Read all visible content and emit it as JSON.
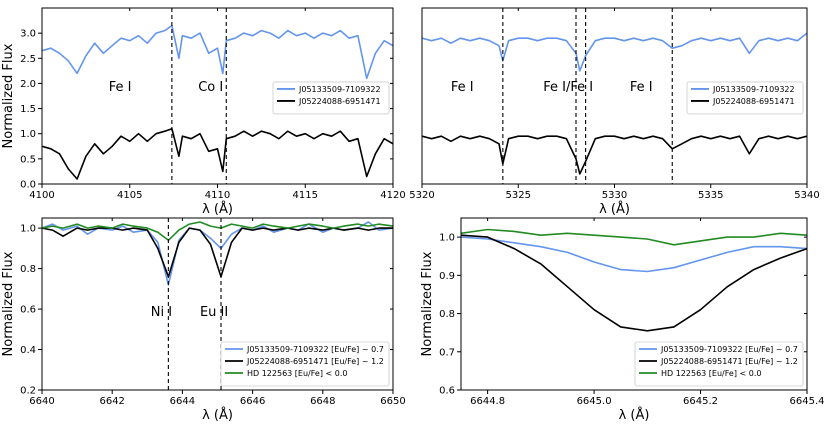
{
  "chart_data": [
    {
      "type": "line",
      "id": "p1",
      "xlabel": "λ (Å)",
      "ylabel": "Normalized Flux",
      "xlim": [
        4100,
        4120
      ],
      "ylim": [
        0.0,
        3.5
      ],
      "xticks": [
        4100,
        4105,
        4110,
        4115,
        4120
      ],
      "yticks": [
        0.0,
        0.5,
        1.0,
        1.5,
        2.0,
        2.5,
        3.0
      ],
      "ytick_labels": [
        "0.0",
        "0.5",
        "1.0",
        "1.5",
        "2.0",
        "2.5",
        "3.0"
      ],
      "vlines": [
        4107.4,
        4110.5
      ],
      "annotations": [
        {
          "text": "Fe I",
          "x": 4103.8,
          "y": 1.85
        },
        {
          "text": "Co I",
          "x": 4108.9,
          "y": 1.85
        }
      ],
      "legend": [
        "J05133509-7109322",
        "J05224088-6951471"
      ],
      "legend_loc": "center-right",
      "series": [
        {
          "name": "J05133509-7109322",
          "color": "#6495ed",
          "x": [
            4100,
            4100.5,
            4101,
            4101.5,
            4102,
            4102.5,
            4103,
            4103.5,
            4104,
            4104.5,
            4105,
            4105.5,
            4106,
            4106.5,
            4107,
            4107.4,
            4107.8,
            4108,
            4108.5,
            4109,
            4109.5,
            4110,
            4110.3,
            4110.5,
            4111,
            4111.5,
            4112,
            4112.5,
            4113,
            4113.5,
            4114,
            4114.5,
            4115,
            4115.5,
            4116,
            4116.5,
            4117,
            4117.5,
            4118,
            4118.5,
            4119,
            4119.5,
            4120
          ],
          "y": [
            2.65,
            2.7,
            2.6,
            2.45,
            2.2,
            2.55,
            2.8,
            2.6,
            2.75,
            2.9,
            2.85,
            2.95,
            2.8,
            3.0,
            3.05,
            3.15,
            2.5,
            2.95,
            2.9,
            3.0,
            2.6,
            2.7,
            2.2,
            2.85,
            2.9,
            3.0,
            2.95,
            3.05,
            3.0,
            2.9,
            3.05,
            2.95,
            3.0,
            2.9,
            3.0,
            2.95,
            3.05,
            2.9,
            2.95,
            2.1,
            2.6,
            2.85,
            2.75
          ]
        },
        {
          "name": "J05224088-6951471",
          "color": "#000000",
          "x": [
            4100,
            4100.5,
            4101,
            4101.5,
            4102,
            4102.5,
            4103,
            4103.5,
            4104,
            4104.5,
            4105,
            4105.5,
            4106,
            4106.5,
            4107,
            4107.4,
            4107.8,
            4108,
            4108.5,
            4109,
            4109.5,
            4110,
            4110.3,
            4110.5,
            4111,
            4111.5,
            4112,
            4112.5,
            4113,
            4113.5,
            4114,
            4114.5,
            4115,
            4115.5,
            4116,
            4116.5,
            4117,
            4117.5,
            4118,
            4118.5,
            4119,
            4119.5,
            4120
          ],
          "y": [
            0.75,
            0.7,
            0.6,
            0.3,
            0.1,
            0.55,
            0.8,
            0.6,
            0.75,
            0.95,
            0.85,
            1.0,
            0.85,
            1.0,
            1.05,
            1.1,
            0.55,
            0.95,
            0.9,
            1.0,
            0.65,
            0.7,
            0.25,
            0.9,
            0.95,
            1.05,
            0.95,
            1.05,
            1.0,
            0.9,
            1.05,
            0.95,
            1.0,
            0.9,
            1.0,
            0.95,
            1.05,
            0.85,
            0.9,
            0.15,
            0.6,
            0.9,
            0.8
          ]
        }
      ]
    },
    {
      "type": "line",
      "id": "p2",
      "xlabel": "λ (Å)",
      "ylabel": "",
      "xlim": [
        5320,
        5340
      ],
      "ylim": [
        0.0,
        3.5
      ],
      "xticks": [
        5320,
        5325,
        5330,
        5335,
        5340
      ],
      "yticks": [],
      "ytick_labels": [],
      "vlines": [
        5324.2,
        5328.0,
        5328.5,
        5333.0
      ],
      "annotations": [
        {
          "text": "Fe I",
          "x": 5321.5,
          "y": 1.85
        },
        {
          "text": "Fe I/Fe I",
          "x": 5326.3,
          "y": 1.85
        },
        {
          "text": "Fe I",
          "x": 5330.8,
          "y": 1.85
        }
      ],
      "legend": [
        "J05133509-7109322",
        "J05224088-6951471"
      ],
      "legend_loc": "center-right",
      "series": [
        {
          "name": "J05133509-7109322",
          "color": "#6495ed",
          "x": [
            5320,
            5320.5,
            5321,
            5321.5,
            5322,
            5322.5,
            5323,
            5323.5,
            5324,
            5324.2,
            5324.5,
            5325,
            5325.5,
            5326,
            5326.5,
            5327,
            5327.5,
            5328,
            5328.2,
            5328.5,
            5329,
            5329.5,
            5330,
            5330.5,
            5331,
            5331.5,
            5332,
            5332.5,
            5333,
            5333.5,
            5334,
            5334.5,
            5335,
            5335.5,
            5336,
            5336.5,
            5337,
            5337.5,
            5338,
            5338.5,
            5339,
            5339.5,
            5340
          ],
          "y": [
            2.9,
            2.85,
            2.9,
            2.8,
            2.9,
            2.85,
            2.9,
            2.85,
            2.75,
            2.45,
            2.85,
            2.9,
            2.9,
            2.85,
            2.9,
            2.9,
            2.85,
            2.6,
            2.25,
            2.55,
            2.85,
            2.9,
            2.9,
            2.85,
            2.9,
            2.85,
            2.9,
            2.85,
            2.7,
            2.75,
            2.85,
            2.9,
            2.85,
            2.9,
            2.85,
            2.9,
            2.6,
            2.85,
            2.9,
            2.85,
            2.9,
            2.85,
            3.0
          ]
        },
        {
          "name": "J05224088-6951471",
          "color": "#000000",
          "x": [
            5320,
            5320.5,
            5321,
            5321.5,
            5322,
            5322.5,
            5323,
            5323.5,
            5324,
            5324.2,
            5324.5,
            5325,
            5325.5,
            5326,
            5326.5,
            5327,
            5327.5,
            5328,
            5328.2,
            5328.5,
            5329,
            5329.5,
            5330,
            5330.5,
            5331,
            5331.5,
            5332,
            5332.5,
            5333,
            5333.5,
            5334,
            5334.5,
            5335,
            5335.5,
            5336,
            5336.5,
            5337,
            5337.5,
            5338,
            5338.5,
            5339,
            5339.5,
            5340
          ],
          "y": [
            0.95,
            0.9,
            0.95,
            0.85,
            0.95,
            0.9,
            0.95,
            0.9,
            0.8,
            0.4,
            0.9,
            0.95,
            0.95,
            0.9,
            0.95,
            0.95,
            0.9,
            0.5,
            0.2,
            0.45,
            0.9,
            0.95,
            0.95,
            0.9,
            0.95,
            0.9,
            0.95,
            0.9,
            0.7,
            0.8,
            0.9,
            0.95,
            0.9,
            0.95,
            0.9,
            0.95,
            0.6,
            0.9,
            0.95,
            0.9,
            0.95,
            0.9,
            0.95
          ]
        }
      ]
    },
    {
      "type": "line",
      "id": "p3",
      "xlabel": "λ (Å)",
      "ylabel": "Normalized Flux",
      "xlim": [
        6640,
        6650
      ],
      "ylim": [
        0.2,
        1.05
      ],
      "xticks": [
        6640,
        6642,
        6644,
        6646,
        6648,
        6650
      ],
      "yticks": [
        0.2,
        0.4,
        0.6,
        0.8,
        1.0
      ],
      "ytick_labels": [
        "0.2",
        "0.4",
        "0.6",
        "0.8",
        "1.0"
      ],
      "vlines": [
        6643.6,
        6645.1
      ],
      "annotations": [
        {
          "text": "Ni I",
          "x": 6643.1,
          "y": 0.565
        },
        {
          "text": "Eu II",
          "x": 6644.5,
          "y": 0.565
        }
      ],
      "legend": [
        "J05133509-7109322 [Eu/Fe] ~ 0.7",
        "J05224088-6951471 [Eu/Fe] ~ 1.2",
        "HD 122563 [Eu/Fe] < 0.0"
      ],
      "legend_loc": "lower-right",
      "series": [
        {
          "name": "J05133509-7109322 [Eu/Fe] ~ 0.7",
          "color": "#6495ed",
          "x": [
            6640,
            6640.3,
            6640.6,
            6641,
            6641.3,
            6641.6,
            6642,
            6642.3,
            6642.6,
            6643,
            6643.3,
            6643.6,
            6643.9,
            6644.2,
            6644.5,
            6644.8,
            6645.1,
            6645.4,
            6645.7,
            6646,
            6646.3,
            6646.6,
            6647,
            6647.3,
            6647.6,
            6648,
            6648.3,
            6648.6,
            6649,
            6649.3,
            6649.6,
            6650
          ],
          "y": [
            1.0,
            1.02,
            0.99,
            1.01,
            0.97,
            1.0,
            0.99,
            1.01,
            0.98,
            0.99,
            0.93,
            0.72,
            0.94,
            1.0,
            0.99,
            0.95,
            0.9,
            0.97,
            1.0,
            0.99,
            1.01,
            0.98,
            1.0,
            0.99,
            1.02,
            0.98,
            1.0,
            0.99,
            1.0,
            1.03,
            0.99,
            1.0
          ]
        },
        {
          "name": "J05224088-6951471 [Eu/Fe] ~ 1.2",
          "color": "#000000",
          "x": [
            6640,
            6640.3,
            6640.6,
            6641,
            6641.3,
            6641.6,
            6642,
            6642.3,
            6642.6,
            6643,
            6643.3,
            6643.6,
            6643.9,
            6644.2,
            6644.5,
            6644.8,
            6645.1,
            6645.4,
            6645.7,
            6646,
            6646.3,
            6646.6,
            6647,
            6647.3,
            6647.6,
            6648,
            6648.3,
            6648.6,
            6649,
            6649.3,
            6649.6,
            6650
          ],
          "y": [
            1.0,
            0.99,
            0.96,
            1.0,
            0.99,
            1.0,
            1.0,
            0.99,
            1.0,
            0.99,
            0.9,
            0.76,
            0.93,
            1.0,
            0.99,
            0.92,
            0.76,
            0.93,
            1.0,
            0.99,
            1.0,
            0.99,
            1.0,
            0.99,
            1.0,
            0.99,
            1.0,
            0.99,
            1.0,
            0.99,
            1.0,
            1.0
          ]
        },
        {
          "name": "HD 122563 [Eu/Fe] < 0.0",
          "color": "#228b22",
          "x": [
            6640,
            6640.3,
            6640.6,
            6641,
            6641.3,
            6641.6,
            6642,
            6642.3,
            6642.6,
            6643,
            6643.3,
            6643.6,
            6643.9,
            6644.2,
            6644.5,
            6644.8,
            6645.1,
            6645.4,
            6645.7,
            6646,
            6646.3,
            6646.6,
            6647,
            6647.3,
            6647.6,
            6648,
            6648.3,
            6648.6,
            6649,
            6649.3,
            6649.6,
            6650
          ],
          "y": [
            1.0,
            1.01,
            1.0,
            1.02,
            1.0,
            1.01,
            1.0,
            1.02,
            1.01,
            1.0,
            0.98,
            0.94,
            0.99,
            1.02,
            1.03,
            1.01,
            1.0,
            1.02,
            1.01,
            1.0,
            1.02,
            1.01,
            1.0,
            1.01,
            1.02,
            1.01,
            1.0,
            1.01,
            1.02,
            1.01,
            1.02,
            1.01
          ]
        }
      ]
    },
    {
      "type": "line",
      "id": "p4",
      "xlabel": "λ (Å)",
      "ylabel": "Normalized Flux",
      "xlim": [
        6644.75,
        6645.4
      ],
      "ylim": [
        0.6,
        1.05
      ],
      "xticks": [
        6644.8,
        6645.0,
        6645.2,
        6645.4
      ],
      "yticks": [
        0.6,
        0.7,
        0.8,
        0.9,
        1.0
      ],
      "ytick_labels": [
        "0.6",
        "0.7",
        "0.8",
        "0.9",
        "1.0"
      ],
      "vlines": [],
      "annotations": [],
      "legend": [
        "J05133509-7109322 [Eu/Fe] ~ 0.7",
        "J05224088-6951471 [Eu/Fe] ~ 1.2",
        "HD 122563 [Eu/Fe] < 0.0"
      ],
      "legend_loc": "lower-right",
      "series": [
        {
          "name": "J05133509-7109322 [Eu/Fe] ~ 0.7",
          "color": "#6495ed",
          "x": [
            6644.75,
            6644.8,
            6644.85,
            6644.9,
            6644.95,
            6645.0,
            6645.05,
            6645.1,
            6645.15,
            6645.2,
            6645.25,
            6645.3,
            6645.35,
            6645.4
          ],
          "y": [
            1.0,
            0.995,
            0.985,
            0.975,
            0.96,
            0.935,
            0.915,
            0.91,
            0.92,
            0.94,
            0.96,
            0.975,
            0.975,
            0.97
          ]
        },
        {
          "name": "J05224088-6951471 [Eu/Fe] ~ 1.2",
          "color": "#000000",
          "x": [
            6644.75,
            6644.8,
            6644.85,
            6644.9,
            6644.95,
            6645.0,
            6645.05,
            6645.1,
            6645.15,
            6645.2,
            6645.25,
            6645.3,
            6645.35,
            6645.4
          ],
          "y": [
            1.005,
            1.0,
            0.97,
            0.93,
            0.87,
            0.81,
            0.765,
            0.755,
            0.765,
            0.81,
            0.87,
            0.915,
            0.945,
            0.97
          ]
        },
        {
          "name": "HD 122563 [Eu/Fe] < 0.0",
          "color": "#228b22",
          "x": [
            6644.75,
            6644.8,
            6644.85,
            6644.9,
            6644.95,
            6645.0,
            6645.05,
            6645.1,
            6645.15,
            6645.2,
            6645.25,
            6645.3,
            6645.35,
            6645.4
          ],
          "y": [
            1.01,
            1.02,
            1.015,
            1.005,
            1.01,
            1.005,
            1.0,
            0.995,
            0.98,
            0.99,
            1.0,
            1.0,
            1.01,
            1.005
          ]
        }
      ]
    }
  ]
}
